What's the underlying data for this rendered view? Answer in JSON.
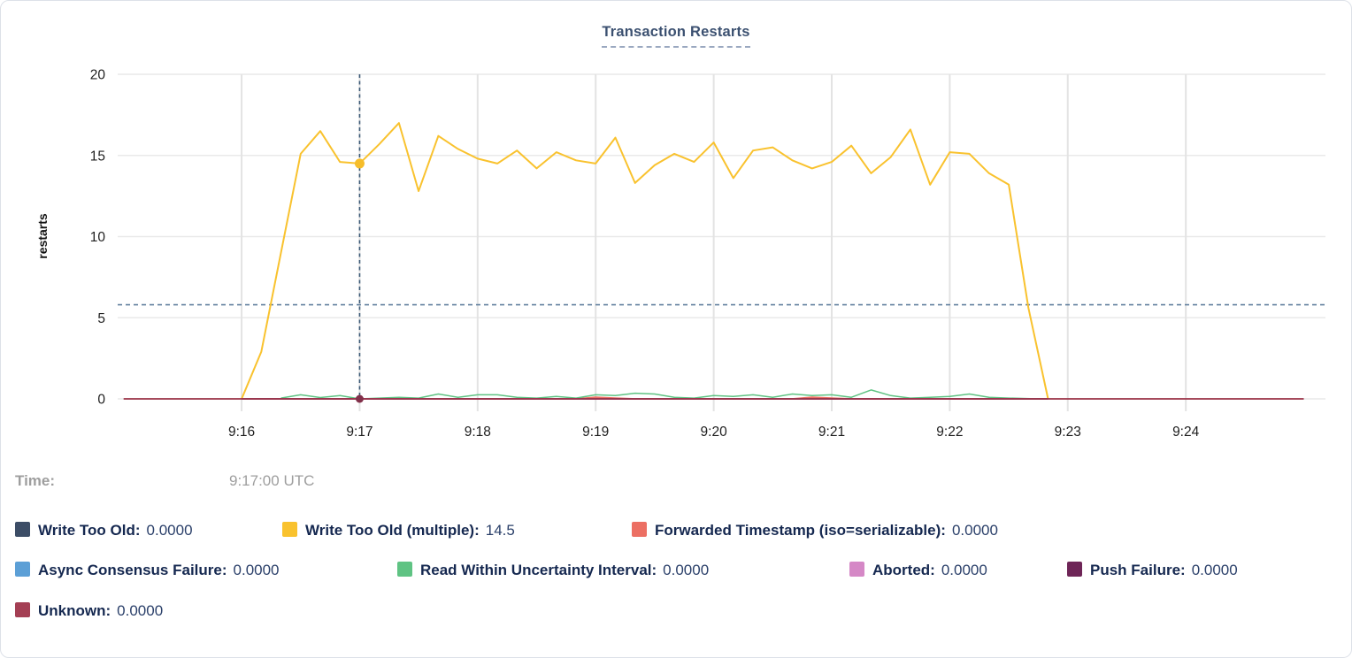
{
  "card": {
    "title": "Transaction Restarts"
  },
  "tooltip": {
    "time_label": "Time:",
    "time_value": "9:17:00 UTC"
  },
  "legend": {
    "rows": [
      {
        "items": [
          {
            "label": "Write Too Old:",
            "value": "0.0000",
            "color": "#3c4d66"
          },
          {
            "label": "Write Too Old (multiple):",
            "value": "14.5",
            "color": "#f9c22e"
          },
          {
            "label": "Forwarded Timestamp (iso=serializable):",
            "value": "0.0000",
            "color": "#ec6f63"
          }
        ]
      },
      {
        "items": [
          {
            "label": "Async Consensus Failure:",
            "value": "0.0000",
            "color": "#5c9fd6"
          },
          {
            "label": "Read Within Uncertainty Interval:",
            "value": "0.0000",
            "color": "#5fc383"
          },
          {
            "label": "Aborted:",
            "value": "0.0000",
            "color": "#d588c6"
          },
          {
            "label": "Push Failure:",
            "value": "0.0000",
            "color": "#6e2557"
          }
        ]
      },
      {
        "items": [
          {
            "label": "Unknown:",
            "value": "0.0000",
            "color": "#a43f54"
          }
        ]
      }
    ]
  },
  "chart_data": {
    "type": "line",
    "title": "Transaction Restarts",
    "xlabel": "",
    "ylabel": "restarts",
    "ylim": [
      0,
      20
    ],
    "yticks": [
      0,
      5,
      10,
      15,
      20
    ],
    "xticks": [
      "9:16",
      "9:17",
      "9:18",
      "9:19",
      "9:20",
      "9:21",
      "9:22",
      "9:23",
      "9:24"
    ],
    "x_domain": [
      "9:14:57",
      "9:25:11"
    ],
    "grid": true,
    "legend_position": "bottom",
    "threshold_line": {
      "value": 5.8,
      "style": "dashed",
      "color": "#64819f"
    },
    "crosshair": {
      "time": "9:17:00",
      "color": "#3c5a77",
      "points": [
        {
          "series": "Write Too Old (multiple)",
          "value": 14.5,
          "color": "#f6bd2a"
        },
        {
          "series": "Unknown",
          "value": 0,
          "color": "#82304a"
        }
      ]
    },
    "series": [
      {
        "name": "Write Too Old",
        "color": "#3c4d66",
        "width": 1.5,
        "points": [
          [
            "9:16:00",
            0
          ],
          [
            "9:22:50",
            0
          ]
        ]
      },
      {
        "name": "Write Too Old (multiple)",
        "color": "#f9c22e",
        "width": 2,
        "points": [
          [
            "9:16:00",
            0
          ],
          [
            "9:16:10",
            2.9
          ],
          [
            "9:16:20",
            9
          ],
          [
            "9:16:30",
            15.1
          ],
          [
            "9:16:40",
            16.5
          ],
          [
            "9:16:50",
            14.6
          ],
          [
            "9:17:00",
            14.5
          ],
          [
            "9:17:10",
            15.7
          ],
          [
            "9:17:20",
            17.0
          ],
          [
            "9:17:30",
            12.8
          ],
          [
            "9:17:40",
            16.2
          ],
          [
            "9:17:50",
            15.4
          ],
          [
            "9:18:00",
            14.8
          ],
          [
            "9:18:10",
            14.5
          ],
          [
            "9:18:20",
            15.3
          ],
          [
            "9:18:30",
            14.2
          ],
          [
            "9:18:40",
            15.2
          ],
          [
            "9:18:50",
            14.7
          ],
          [
            "9:19:00",
            14.5
          ],
          [
            "9:19:10",
            16.1
          ],
          [
            "9:19:20",
            13.3
          ],
          [
            "9:19:30",
            14.4
          ],
          [
            "9:19:40",
            15.1
          ],
          [
            "9:19:50",
            14.6
          ],
          [
            "9:20:00",
            15.8
          ],
          [
            "9:20:10",
            13.6
          ],
          [
            "9:20:20",
            15.3
          ],
          [
            "9:20:30",
            15.5
          ],
          [
            "9:20:40",
            14.7
          ],
          [
            "9:20:50",
            14.2
          ],
          [
            "9:21:00",
            14.6
          ],
          [
            "9:21:10",
            15.6
          ],
          [
            "9:21:20",
            13.9
          ],
          [
            "9:21:30",
            14.9
          ],
          [
            "9:21:40",
            16.6
          ],
          [
            "9:21:50",
            13.2
          ],
          [
            "9:22:00",
            15.2
          ],
          [
            "9:22:10",
            15.1
          ],
          [
            "9:22:20",
            13.9
          ],
          [
            "9:22:30",
            13.2
          ],
          [
            "9:22:40",
            5.6
          ],
          [
            "9:22:50",
            0
          ]
        ]
      },
      {
        "name": "Forwarded Timestamp (iso=serializable)",
        "color": "#ec6f63",
        "width": 1.8,
        "points": [
          [
            "9:16:00",
            0
          ],
          [
            "9:18:50",
            0
          ],
          [
            "9:19:00",
            0.1
          ],
          [
            "9:19:10",
            0.05
          ],
          [
            "9:19:20",
            0
          ],
          [
            "9:20:40",
            0
          ],
          [
            "9:20:50",
            0.1
          ],
          [
            "9:21:00",
            0.05
          ],
          [
            "9:21:10",
            0
          ],
          [
            "9:22:50",
            0
          ]
        ]
      },
      {
        "name": "Async Consensus Failure",
        "color": "#5c9fd6",
        "width": 1.5,
        "points": [
          [
            "9:16:00",
            0
          ],
          [
            "9:22:50",
            0
          ]
        ]
      },
      {
        "name": "Read Within Uncertainty Interval",
        "color": "#5fc383",
        "width": 1.5,
        "points": [
          [
            "9:16:20",
            0.05
          ],
          [
            "9:16:30",
            0.25
          ],
          [
            "9:16:40",
            0.08
          ],
          [
            "9:16:50",
            0.2
          ],
          [
            "9:17:00",
            0
          ],
          [
            "9:17:10",
            0.05
          ],
          [
            "9:17:20",
            0.1
          ],
          [
            "9:17:30",
            0.05
          ],
          [
            "9:17:40",
            0.3
          ],
          [
            "9:17:50",
            0.1
          ],
          [
            "9:18:00",
            0.25
          ],
          [
            "9:18:10",
            0.25
          ],
          [
            "9:18:20",
            0.1
          ],
          [
            "9:18:30",
            0.05
          ],
          [
            "9:18:40",
            0.15
          ],
          [
            "9:18:50",
            0.05
          ],
          [
            "9:19:00",
            0.25
          ],
          [
            "9:19:10",
            0.2
          ],
          [
            "9:19:20",
            0.35
          ],
          [
            "9:19:30",
            0.3
          ],
          [
            "9:19:40",
            0.1
          ],
          [
            "9:19:50",
            0.05
          ],
          [
            "9:20:00",
            0.2
          ],
          [
            "9:20:10",
            0.15
          ],
          [
            "9:20:20",
            0.25
          ],
          [
            "9:20:30",
            0.1
          ],
          [
            "9:20:40",
            0.3
          ],
          [
            "9:20:50",
            0.2
          ],
          [
            "9:21:00",
            0.25
          ],
          [
            "9:21:10",
            0.1
          ],
          [
            "9:21:20",
            0.55
          ],
          [
            "9:21:30",
            0.2
          ],
          [
            "9:21:40",
            0.05
          ],
          [
            "9:21:50",
            0.1
          ],
          [
            "9:22:00",
            0.15
          ],
          [
            "9:22:10",
            0.3
          ],
          [
            "9:22:20",
            0.1
          ],
          [
            "9:22:30",
            0.05
          ],
          [
            "9:22:45",
            0
          ]
        ]
      },
      {
        "name": "Aborted",
        "color": "#d588c6",
        "width": 1.5,
        "points": [
          [
            "9:16:00",
            0
          ],
          [
            "9:22:50",
            0
          ]
        ]
      },
      {
        "name": "Push Failure",
        "color": "#6e2557",
        "width": 1.5,
        "points": [
          [
            "9:16:00",
            0
          ],
          [
            "9:22:50",
            0
          ]
        ]
      },
      {
        "name": "Unknown",
        "color": "#9b3247",
        "width": 1.8,
        "points": [
          [
            "9:15:00",
            0
          ],
          [
            "9:25:00",
            0
          ]
        ]
      }
    ]
  }
}
